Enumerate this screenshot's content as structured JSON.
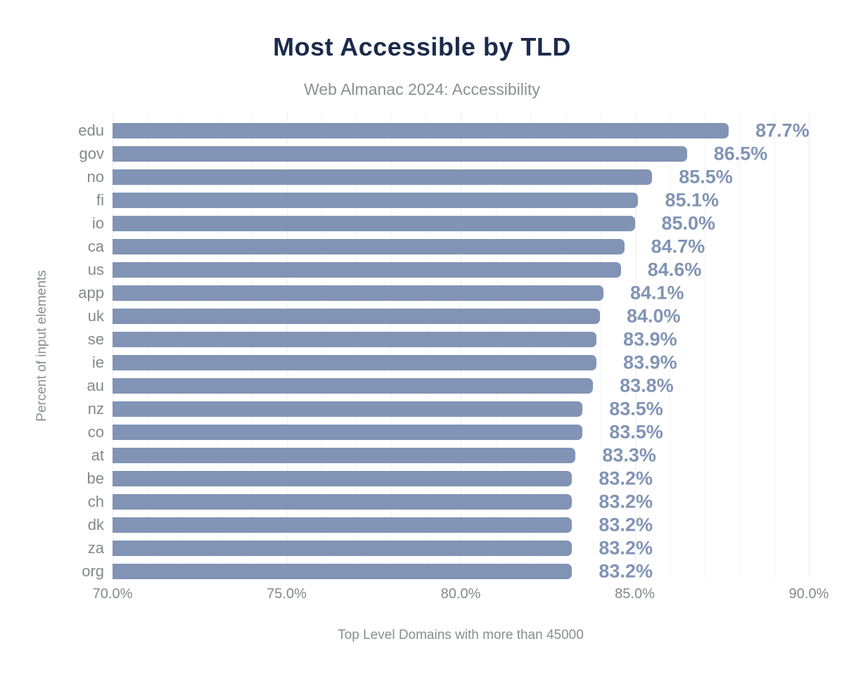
{
  "page": {
    "background_color": "#ffffff"
  },
  "chart_data": {
    "type": "bar",
    "orientation": "horizontal",
    "title": "Most Accessible by TLD",
    "subtitle": "Web Almanac 2024: Accessibility",
    "xlabel": "Top Level Domains with more than 45000",
    "ylabel": "Percent of input elements",
    "categories": [
      "edu",
      "gov",
      "no",
      "fi",
      "io",
      "ca",
      "us",
      "app",
      "uk",
      "se",
      "ie",
      "au",
      "nz",
      "co",
      "at",
      "be",
      "ch",
      "dk",
      "za",
      "org"
    ],
    "values": [
      87.7,
      86.5,
      85.5,
      85.1,
      85.0,
      84.7,
      84.6,
      84.1,
      84.0,
      83.9,
      83.9,
      83.8,
      83.5,
      83.5,
      83.3,
      83.2,
      83.2,
      83.2,
      83.2,
      83.2
    ],
    "value_labels": [
      "87.7%",
      "86.5%",
      "85.5%",
      "85.1%",
      "85.0%",
      "84.7%",
      "84.6%",
      "84.1%",
      "84.0%",
      "83.9%",
      "83.9%",
      "83.8%",
      "83.5%",
      "83.5%",
      "83.3%",
      "83.2%",
      "83.2%",
      "83.2%",
      "83.2%",
      "83.2%"
    ],
    "xlim": [
      70,
      90
    ],
    "x_ticks": {
      "values": [
        70,
        75,
        80,
        85,
        90
      ],
      "labels": [
        "70.0%",
        "75.0%",
        "80.0%",
        "85.0%",
        "90.0%"
      ]
    },
    "grid": {
      "minor_step_pct": 1,
      "major_step_pct": 5,
      "extend_to_pct": 91
    },
    "legend": "none",
    "colors": {
      "bar": "#8194b5",
      "value_label": "#8194b5",
      "title": "#1b2b4d",
      "subtitle": "#8d9093",
      "axis_text": "#85888b",
      "axis_title_text": "#8a8d90",
      "gridline_minor": "#f3f4f6",
      "gridline_major": "#d9dce1"
    }
  }
}
